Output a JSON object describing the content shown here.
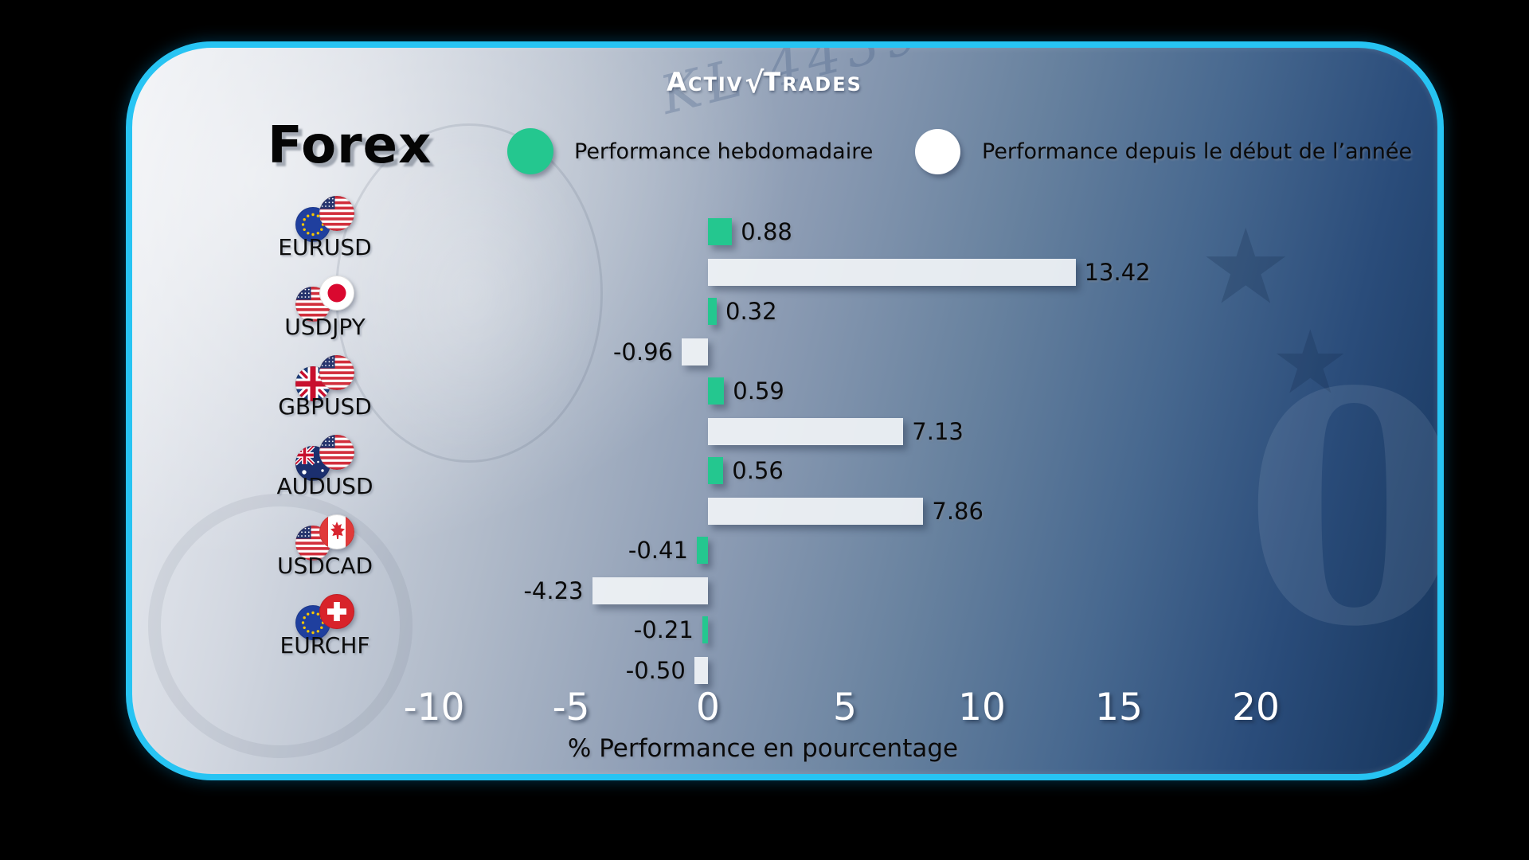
{
  "brand": {
    "name": "ActivTrades",
    "logo_left_initial": "A",
    "logo_left_rest": "CTIV",
    "logo_check": "√",
    "logo_right_initial": "T",
    "logo_right_rest": "RADES"
  },
  "title": "Forex",
  "legend": [
    {
      "label": "Performance hebdomadaire",
      "color": "#24c78f"
    },
    {
      "label": "Performance depuis le début de l’année",
      "color": "#ffffff"
    }
  ],
  "background_texture": {
    "serial_number": "KL 4439"
  },
  "colors": {
    "card_border": "#27c4f3",
    "weekly_bar": "#24c78f",
    "ytd_bar": "#eef0f3",
    "grid": "#ffffff",
    "value_text": "#0a0a0a",
    "tick_text": "#ffffff"
  },
  "chart_data": {
    "type": "bar",
    "orientation": "horizontal",
    "title": "Forex",
    "categories": [
      "EURUSD",
      "USDJPY",
      "GBPUSD",
      "AUDUSD",
      "USDCAD",
      "EURCHF"
    ],
    "series": [
      {
        "name": "Performance hebdomadaire",
        "color": "#24c78f",
        "values": [
          0.88,
          0.32,
          0.59,
          0.56,
          -0.41,
          -0.21
        ]
      },
      {
        "name": "Performance depuis le début de l’année",
        "color": "#eef0f3",
        "values": [
          13.42,
          -0.96,
          7.13,
          7.86,
          -4.23,
          -0.5
        ]
      }
    ],
    "flags": [
      [
        "eu",
        "us"
      ],
      [
        "us",
        "jp"
      ],
      [
        "gb",
        "us"
      ],
      [
        "au",
        "us"
      ],
      [
        "us",
        "ca"
      ],
      [
        "eu",
        "ch"
      ]
    ],
    "x_ticks": [
      -10,
      -5,
      0,
      5,
      10,
      15,
      20
    ],
    "x_tick_labels": [
      "-10",
      "-5",
      "0",
      "5",
      "10",
      "15",
      "20"
    ],
    "xlim": [
      -12.3,
      22.6
    ],
    "xlabel": "% Performance en pourcentage",
    "grid": "vertical-dashed-white",
    "legend_position": "top",
    "value_label_decimals": 2
  }
}
